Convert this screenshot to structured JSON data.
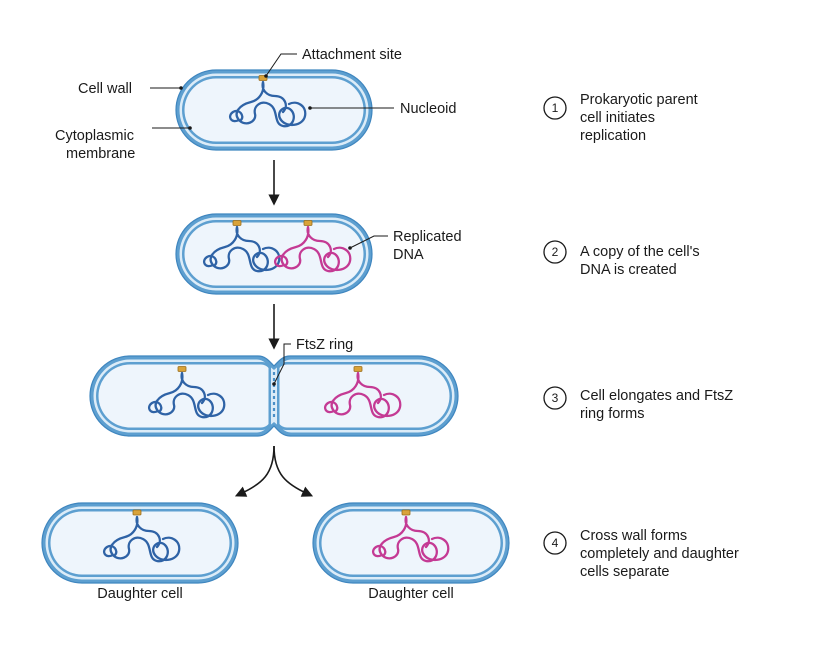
{
  "labels": {
    "cell_wall": "Cell wall",
    "cytoplasmic_membrane_line1": "Cytoplasmic",
    "cytoplasmic_membrane_line2": "membrane",
    "attachment_site": "Attachment site",
    "nucleoid": "Nucleoid",
    "replicated_dna_line1": "Replicated",
    "replicated_dna_line2": "DNA",
    "ftsz_ring": "FtsZ ring",
    "daughter_cell_left": "Daughter cell",
    "daughter_cell_right": "Daughter cell"
  },
  "steps": [
    {
      "number": "1",
      "lines": [
        "Prokaryotic parent",
        "cell initiates",
        "replication"
      ]
    },
    {
      "number": "2",
      "lines": [
        "A copy of the cell's",
        "DNA is created"
      ]
    },
    {
      "number": "3",
      "lines": [
        "Cell elongates and FtsZ",
        "ring forms"
      ]
    },
    {
      "number": "4",
      "lines": [
        "Cross wall forms",
        "completely and daughter",
        "cells separate"
      ]
    }
  ],
  "colors": {
    "cell_wall": "#5d9fd0",
    "cytoplasm": "#eef5fc",
    "dna_original": "#2f63a6",
    "dna_copy": "#c43a94",
    "attachment_site": "#d9a33a"
  }
}
